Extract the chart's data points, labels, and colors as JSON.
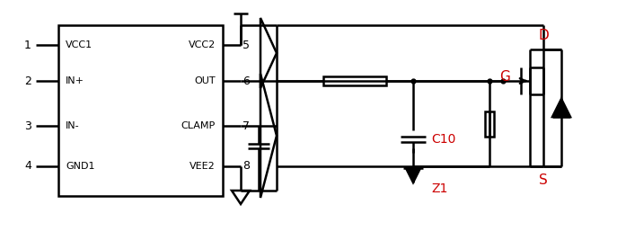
{
  "bg_color": "#ffffff",
  "line_color": "#000000",
  "red_color": "#cc0000",
  "line_width": 1.8,
  "fig_width": 6.97,
  "fig_height": 2.67,
  "labels": {
    "pin1": "1",
    "pin2": "2",
    "pin3": "3",
    "pin4": "4",
    "pin5": "5",
    "pin6": "6",
    "pin7": "7",
    "pin8": "8",
    "vcc1": "VCC1",
    "inp": "IN+",
    "inn": "IN-",
    "gnd1": "GND1",
    "vcc2": "VCC2",
    "out": "OUT",
    "clamp": "CLAMP",
    "vee2": "VEE2",
    "D": "D",
    "G": "G",
    "S": "S",
    "C10": "C10",
    "Z1": "Z1"
  }
}
